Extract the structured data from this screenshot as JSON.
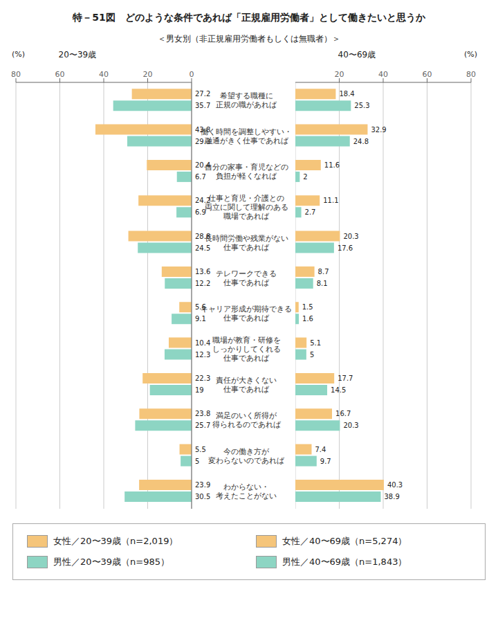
{
  "title": "特－51図　どのような条件であれば「正規雇用労働者」として働きたいと思うか",
  "subtitle": "＜男女別（非正規雇用労働者もしくは無職者）＞",
  "chart_data": [
    {
      "type": "bar",
      "orientation": "horizontal",
      "title": "20〜39歳",
      "xlabel": "(%)",
      "categories": [
        "希望する職種に\n正規の職があれば",
        "働く時間を調整しやすい・\n融通がきく仕事であれば",
        "自分の家事・育児などの\n負担が軽くなれば",
        "仕事と育児・介護との\n両立に関して理解のある\n職場であれば",
        "長時間労働や残業がない\n仕事であれば",
        "テレワークできる\n仕事であれば",
        "キャリア形成が期待できる\n仕事であれば",
        "職場が教育・研修を\nしっかりしてくれる\n仕事であれば",
        "責任が大きくない\n仕事であれば",
        "満足のいく所得が\n得られるのであれば",
        "今の働き方が\n変わらないのであれば",
        "わからない・\n考えたことがない"
      ],
      "series": [
        {
          "name": "女性／20〜39歳（n=2,019）",
          "color": "#f5c57a",
          "values": [
            27.2,
            43.8,
            20.4,
            24.2,
            28.8,
            13.6,
            5.6,
            10.4,
            22.3,
            23.8,
            5.5,
            23.9
          ]
        },
        {
          "name": "男性／20〜39歳（n=985）",
          "color": "#8dd5c3",
          "values": [
            35.7,
            29.3,
            6.7,
            6.9,
            24.5,
            12.2,
            9.1,
            12.3,
            19.0,
            25.7,
            5.0,
            30.5
          ]
        }
      ],
      "xlim": [
        80,
        0
      ],
      "xticks": [
        0,
        20,
        40,
        60,
        80
      ],
      "grid": true,
      "data_labels": true
    },
    {
      "type": "bar",
      "orientation": "horizontal",
      "title": "40〜69歳",
      "xlabel": "(%)",
      "categories": [
        "希望する職種に\n正規の職があれば",
        "働く時間を調整しやすい・\n融通がきく仕事であれば",
        "自分の家事・育児などの\n負担が軽くなれば",
        "仕事と育児・介護との\n両立に関して理解のある\n職場であれば",
        "長時間労働や残業がない\n仕事であれば",
        "テレワークできる\n仕事であれば",
        "キャリア形成が期待できる\n仕事であれば",
        "職場が教育・研修を\nしっかりしてくれる\n仕事であれば",
        "責任が大きくない\n仕事であれば",
        "満足のいく所得が\n得られるのであれば",
        "今の働き方が\n変わらないのであれば",
        "わからない・\n考えたことがない"
      ],
      "series": [
        {
          "name": "女性／40〜69歳（n=5,274）",
          "color": "#f5c57a",
          "values": [
            18.4,
            32.9,
            11.6,
            11.1,
            20.3,
            8.7,
            1.5,
            5.1,
            17.7,
            16.7,
            7.4,
            40.3
          ]
        },
        {
          "name": "男性／40〜69歳（n=1,843）",
          "color": "#8dd5c3",
          "values": [
            25.3,
            24.8,
            2.0,
            2.7,
            17.6,
            8.1,
            1.6,
            5.0,
            14.5,
            20.3,
            9.7,
            38.9
          ]
        }
      ],
      "xlim": [
        0,
        80
      ],
      "xticks": [
        0,
        20,
        40,
        60,
        80
      ],
      "grid": true,
      "data_labels": true
    }
  ]
}
